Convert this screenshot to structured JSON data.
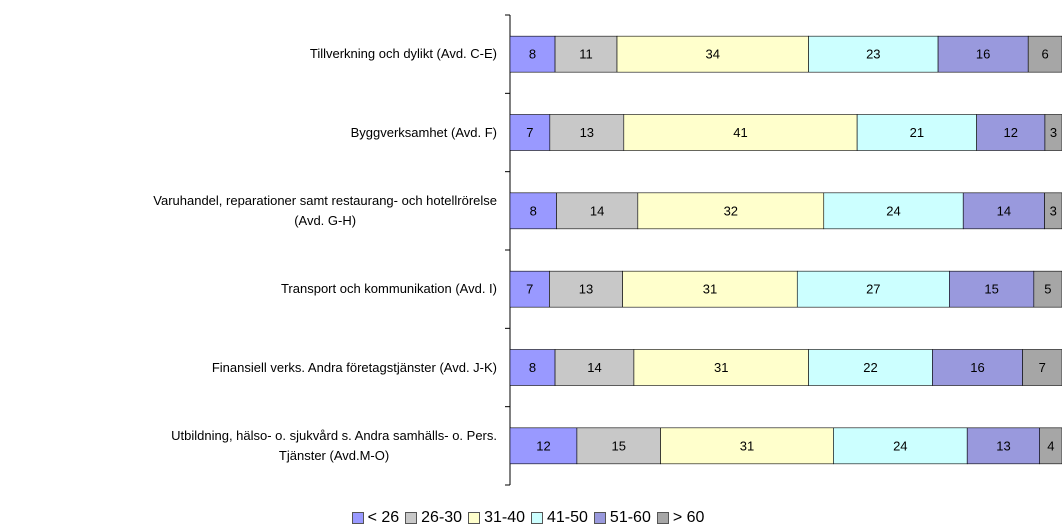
{
  "chart_data": {
    "type": "stacked100",
    "orientation": "horizontal",
    "categories": [
      "Tillverkning och dylikt (Avd. C-E)",
      "Byggverksamhet (Avd. F)",
      "Varuhandel, reparationer samt restaurang- och hotellrörelse\n(Avd. G-H)",
      "Transport och kommunikation (Avd. I)",
      "Finansiell verks. Andra företagstjänster (Avd. J-K)",
      "Utbildning, hälso- o. sjukvård s. Andra samhälls- o. Pers.\nTjänster (Avd.M-O)"
    ],
    "series": [
      {
        "name": "< 26",
        "color": "#9999ff",
        "values": [
          8,
          7,
          8,
          7,
          8,
          12
        ]
      },
      {
        "name": "26-30",
        "color": "#c8c8c8",
        "values": [
          11,
          13,
          14,
          13,
          14,
          15
        ]
      },
      {
        "name": "31-40",
        "color": "#ffffcc",
        "values": [
          34,
          41,
          32,
          31,
          31,
          31
        ]
      },
      {
        "name": "41-50",
        "color": "#ccffff",
        "values": [
          23,
          21,
          24,
          27,
          22,
          24
        ]
      },
      {
        "name": "51-60",
        "color": "#9999dd",
        "values": [
          16,
          12,
          14,
          15,
          16,
          13
        ]
      },
      {
        "name": "> 60",
        "color": "#a6a6a6",
        "values": [
          6,
          3,
          3,
          5,
          7,
          4
        ]
      }
    ],
    "legend": "bottom"
  }
}
